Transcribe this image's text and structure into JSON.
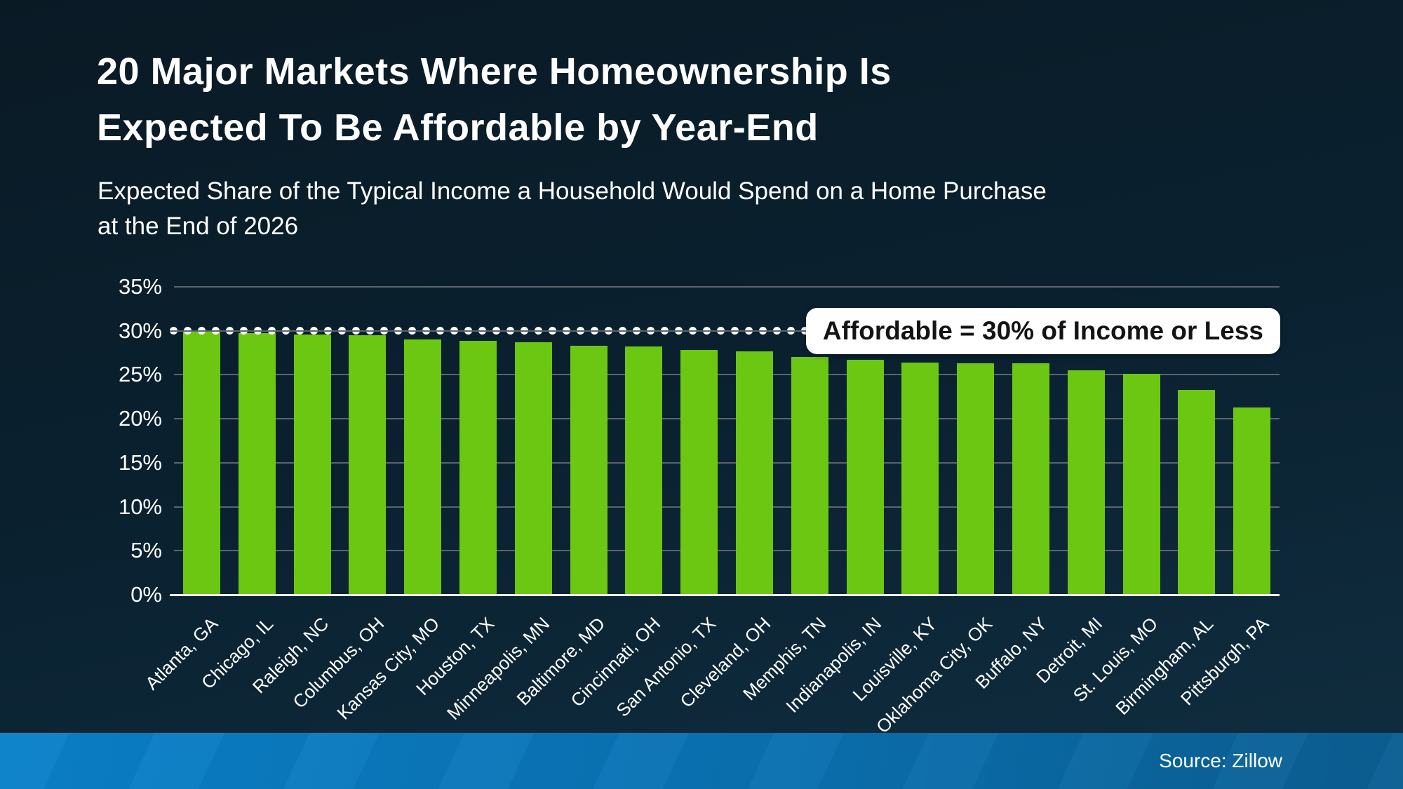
{
  "header": {
    "title_lines": [
      "20 Major Markets Where Homeownership Is",
      "Expected To Be Affordable by Year-End"
    ],
    "subtitle_lines": [
      "Expected Share of the Typical Income a Household Would Spend on a Home Purchase",
      "at the End of 2026"
    ]
  },
  "footer": {
    "source": "Source: Zillow"
  },
  "colors": {
    "background_top": "#0a1a25",
    "background_mid": "#0a2130",
    "background_bottom": "#102e40",
    "text": "#ffffff",
    "bar": "#6cc713",
    "gridline": "#5a656c",
    "baseline": "#f4f7f8",
    "dotted_line": "#ffffff",
    "callout_bg": "#ffffff",
    "callout_text": "#141414",
    "footer_left": "#0a81ca",
    "footer_mid": "#0a71b1",
    "footer_right": "#0b5e92"
  },
  "chart_data": {
    "type": "bar",
    "title": "20 Major Markets Where Homeownership Is Expected To Be Affordable by Year-End",
    "subtitle": "Expected Share of the Typical Income a Household Would Spend on a Home Purchase at the End of 2026",
    "xlabel": "",
    "ylabel": "",
    "ylim": [
      0,
      35
    ],
    "grid": true,
    "legend": false,
    "ytick_values": [
      0,
      5,
      10,
      15,
      20,
      25,
      30,
      35
    ],
    "ytick_labels": [
      "0%",
      "5%",
      "10%",
      "15%",
      "20%",
      "25%",
      "30%",
      "35%"
    ],
    "categories": [
      "Atlanta, GA",
      "Chicago, IL",
      "Raleigh, NC",
      "Columbus, OH",
      "Kansas City, MO",
      "Houston, TX",
      "Minneapolis, MN",
      "Baltimore, MD",
      "Cincinnati, OH",
      "San Antonio, TX",
      "Cleveland, OH",
      "Memphis, TN",
      "Indianapolis, IN",
      "Louisville, KY",
      "Oklahoma City, OK",
      "Buffalo, NY",
      "Detroit, MI",
      "St. Louis, MO",
      "Birmingham, AL",
      "Pittsburgh, PA"
    ],
    "values": [
      29.9,
      29.7,
      29.6,
      29.5,
      29.0,
      28.9,
      28.7,
      28.3,
      28.2,
      27.8,
      27.7,
      27.0,
      26.7,
      26.4,
      26.3,
      26.3,
      25.5,
      25.1,
      23.3,
      21.3
    ],
    "reference_line": {
      "value": 30,
      "style": "dotted",
      "label": "Affordable = 30% of Income or Less"
    }
  }
}
